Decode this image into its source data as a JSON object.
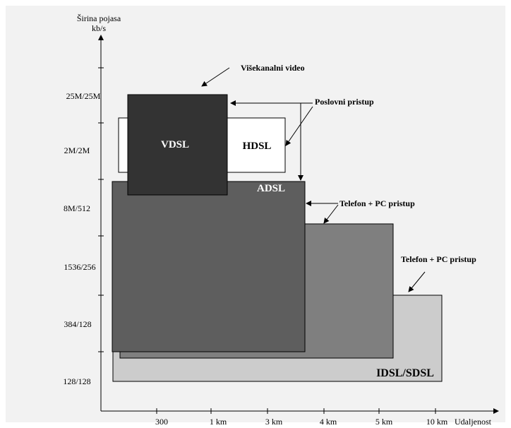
{
  "axes": {
    "y_title_line1": "Širina pojasa",
    "y_title_line2": "kb/s",
    "x_title": "Udaljenost",
    "y_ticks": [
      "25M/25M",
      "2M/2M",
      "8M/512",
      "1536/256",
      "384/128",
      "128/128"
    ],
    "x_ticks": [
      "300",
      "1 km",
      "3 km",
      "4 km",
      "5 km",
      "10 km"
    ]
  },
  "boxes": {
    "vdsl": "VDSL",
    "hdsl": "HDSL",
    "adsl": "ADSL",
    "idsl": "IDSL/SDSL"
  },
  "callouts": {
    "video": "Višekanalni video",
    "business": "Poslovni pristup",
    "phone_pc_1": "Telefon + PC pristup",
    "phone_pc_2": "Telefon + PC pristup"
  },
  "colors": {
    "panel": "#f2f2f2",
    "vdsl": "#333333",
    "hdsl": "#ffffff",
    "adsl": "#5e5e5e",
    "middle": "#7f7f7f",
    "idsl": "#cccccc"
  }
}
